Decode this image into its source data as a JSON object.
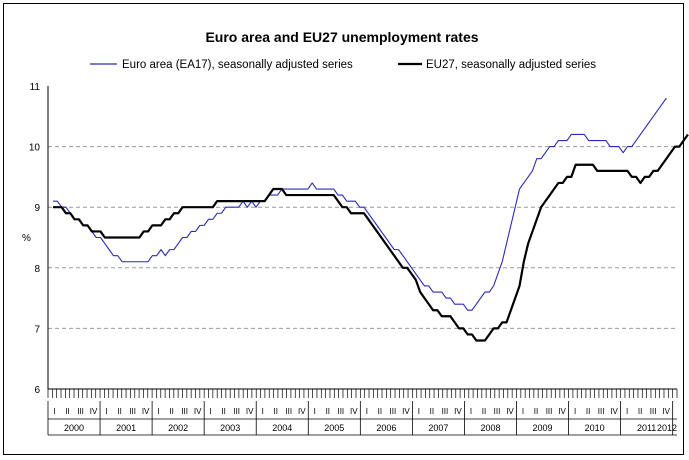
{
  "chart_data": {
    "type": "line",
    "title": "Euro area and EU27 unemployment rates",
    "xlabel": "",
    "ylabel": "%",
    "ylim": [
      6,
      11
    ],
    "yticks": [
      "6",
      "7",
      "8",
      "9",
      "10",
      "11"
    ],
    "gridlines": [
      7,
      8,
      9,
      10
    ],
    "quarter_labels": [
      "I",
      "II",
      "III",
      "IV"
    ],
    "years": [
      "2000",
      "2001",
      "2002",
      "2003",
      "2004",
      "2005",
      "2006",
      "2007",
      "2008",
      "2009",
      "2010",
      "2011",
      "2012"
    ],
    "x_months_total": 145,
    "series": [
      {
        "name": "Euro area (EA17), seasonally adjusted series",
        "color": "#2b2bb8",
        "values": [
          9.1,
          9.1,
          9.0,
          9.0,
          8.9,
          8.8,
          8.8,
          8.7,
          8.7,
          8.6,
          8.5,
          8.5,
          8.4,
          8.3,
          8.2,
          8.2,
          8.1,
          8.1,
          8.1,
          8.1,
          8.1,
          8.1,
          8.1,
          8.2,
          8.2,
          8.3,
          8.2,
          8.3,
          8.3,
          8.4,
          8.5,
          8.5,
          8.6,
          8.6,
          8.7,
          8.7,
          8.8,
          8.8,
          8.9,
          8.9,
          9.0,
          9.0,
          9.0,
          9.0,
          9.1,
          9.0,
          9.1,
          9.0,
          9.1,
          9.1,
          9.2,
          9.2,
          9.2,
          9.3,
          9.3,
          9.3,
          9.3,
          9.3,
          9.3,
          9.3,
          9.4,
          9.3,
          9.3,
          9.3,
          9.3,
          9.3,
          9.2,
          9.2,
          9.1,
          9.1,
          9.1,
          9.0,
          9.0,
          8.9,
          8.8,
          8.7,
          8.6,
          8.5,
          8.4,
          8.3,
          8.3,
          8.2,
          8.1,
          8.0,
          7.9,
          7.8,
          7.7,
          7.7,
          7.6,
          7.6,
          7.6,
          7.5,
          7.5,
          7.4,
          7.4,
          7.4,
          7.3,
          7.3,
          7.4,
          7.5,
          7.6,
          7.6,
          7.7,
          7.9,
          8.1,
          8.4,
          8.7,
          9.0,
          9.3,
          9.4,
          9.5,
          9.6,
          9.8,
          9.8,
          9.9,
          10.0,
          10.0,
          10.1,
          10.1,
          10.1,
          10.2,
          10.2,
          10.2,
          10.2,
          10.1,
          10.1,
          10.1,
          10.1,
          10.1,
          10.0,
          10.0,
          10.0,
          9.9,
          10.0,
          10.0,
          10.1,
          10.2,
          10.3,
          10.4,
          10.5,
          10.6,
          10.7,
          10.8
        ]
      },
      {
        "name": "EU27, seasonally adjusted series",
        "color": "#000000",
        "values": [
          9.0,
          9.0,
          9.0,
          8.9,
          8.9,
          8.8,
          8.8,
          8.7,
          8.7,
          8.6,
          8.6,
          8.6,
          8.5,
          8.5,
          8.5,
          8.5,
          8.5,
          8.5,
          8.5,
          8.5,
          8.5,
          8.6,
          8.6,
          8.7,
          8.7,
          8.7,
          8.8,
          8.8,
          8.9,
          8.9,
          9.0,
          9.0,
          9.0,
          9.0,
          9.0,
          9.0,
          9.0,
          9.0,
          9.1,
          9.1,
          9.1,
          9.1,
          9.1,
          9.1,
          9.1,
          9.1,
          9.1,
          9.1,
          9.1,
          9.1,
          9.2,
          9.3,
          9.3,
          9.3,
          9.2,
          9.2,
          9.2,
          9.2,
          9.2,
          9.2,
          9.2,
          9.2,
          9.2,
          9.2,
          9.2,
          9.2,
          9.1,
          9.0,
          9.0,
          8.9,
          8.9,
          8.9,
          8.9,
          8.8,
          8.7,
          8.6,
          8.5,
          8.4,
          8.3,
          8.2,
          8.1,
          8.0,
          8.0,
          7.9,
          7.8,
          7.6,
          7.5,
          7.4,
          7.3,
          7.3,
          7.2,
          7.2,
          7.2,
          7.1,
          7.0,
          7.0,
          6.9,
          6.9,
          6.8,
          6.8,
          6.8,
          6.9,
          7.0,
          7.0,
          7.1,
          7.1,
          7.3,
          7.5,
          7.7,
          8.1,
          8.4,
          8.6,
          8.8,
          9.0,
          9.1,
          9.2,
          9.3,
          9.4,
          9.4,
          9.5,
          9.5,
          9.7,
          9.7,
          9.7,
          9.7,
          9.7,
          9.6,
          9.6,
          9.6,
          9.6,
          9.6,
          9.6,
          9.6,
          9.6,
          9.5,
          9.5,
          9.4,
          9.5,
          9.5,
          9.6,
          9.6,
          9.7,
          9.8,
          9.9,
          10.0,
          10.0,
          10.1,
          10.2
        ]
      }
    ]
  }
}
